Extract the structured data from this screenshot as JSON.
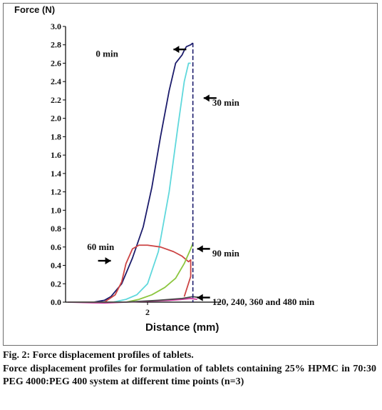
{
  "chart_data": {
    "type": "line",
    "xlabel": "Distance (mm)",
    "ylabel": "Force (N)",
    "ylim": [
      0,
      3.0
    ],
    "yticks": [
      "0.0",
      "0.2",
      "0.4",
      "0.6",
      "0.8",
      "1.0",
      "1.2",
      "1.4",
      "1.6",
      "1.8",
      "2.0",
      "2.2",
      "2.4",
      "2.6",
      "2.8",
      "3.0"
    ],
    "xlim": [
      -1.8,
      5.4
    ],
    "xticks": [
      "2"
    ],
    "grid": false,
    "series": [
      {
        "color": "#1b1b6b",
        "x": [
          -1.7,
          -0.5,
          0.0,
          0.3,
          0.8,
          1.3,
          1.8,
          2.2,
          2.6,
          3.0,
          3.3,
          3.6,
          3.7,
          3.8,
          4.0,
          4.1
        ],
        "y": [
          0.0,
          0.0,
          0.02,
          0.06,
          0.2,
          0.48,
          0.82,
          1.25,
          1.8,
          2.3,
          2.6,
          2.69,
          2.74,
          2.78,
          2.8,
          2.82
        ]
      },
      {
        "color": "#5fd8dc",
        "x": [
          -1.7,
          0.4,
          1.0,
          1.5,
          2.0,
          2.5,
          3.0,
          3.4,
          3.7,
          3.9,
          4.0
        ],
        "y": [
          0.0,
          0.0,
          0.03,
          0.08,
          0.2,
          0.55,
          1.2,
          1.9,
          2.4,
          2.6,
          2.6
        ]
      },
      {
        "color": "#cc4444",
        "x": [
          -1.7,
          0.0,
          0.5,
          0.8,
          1.0,
          1.3,
          1.6,
          2.0,
          2.6,
          3.2,
          3.6,
          3.9,
          4.0,
          4.0,
          3.7
        ],
        "y": [
          0.0,
          0.0,
          0.08,
          0.22,
          0.42,
          0.58,
          0.62,
          0.62,
          0.6,
          0.55,
          0.5,
          0.44,
          0.46,
          0.28,
          0.06
        ]
      },
      {
        "color": "#8cc63f",
        "x": [
          -1.7,
          1.0,
          1.6,
          2.2,
          2.8,
          3.3,
          3.7,
          4.0,
          4.1
        ],
        "y": [
          0.0,
          0.0,
          0.03,
          0.08,
          0.16,
          0.26,
          0.42,
          0.58,
          0.64
        ]
      },
      {
        "color": "#d13aa0",
        "x": [
          -1.7,
          0.0,
          1.0,
          2.0,
          3.0,
          3.6,
          4.0,
          4.3
        ],
        "y": [
          0.0,
          -0.01,
          0.0,
          0.01,
          0.02,
          0.03,
          0.04,
          0.03
        ]
      },
      {
        "color": "#4a4a4a",
        "x": [
          -1.7,
          1.0,
          2.5,
          3.6,
          4.1,
          4.4
        ],
        "y": [
          0.0,
          0.0,
          0.02,
          0.04,
          0.06,
          0.05
        ]
      }
    ],
    "annotations": [
      {
        "label": "0 min",
        "x": -0.4,
        "y": 2.7,
        "arrow_dir": "left",
        "arrow_to": [
          3.2,
          2.75
        ]
      },
      {
        "label": "30 min",
        "x": 5.0,
        "y": 2.17,
        "arrow_dir": "left",
        "arrow_to": [
          4.6,
          2.22
        ]
      },
      {
        "label": "60 min",
        "x": -0.8,
        "y": 0.6,
        "arrow_dir": "right",
        "arrow_to": [
          0.3,
          0.45
        ]
      },
      {
        "label": "90 min",
        "x": 5.0,
        "y": 0.53,
        "arrow_dir": "left",
        "arrow_to": [
          4.3,
          0.58
        ]
      },
      {
        "label": "120, 240, 360 and 480 min",
        "x": 5.0,
        "y": 0.0,
        "arrow_dir": "left",
        "arrow_to": [
          4.3,
          0.05
        ]
      }
    ]
  },
  "caption": {
    "title": "Fig. 2:  Force displacement profiles of tablets.",
    "text": "Force displacement profiles for formulation of tablets containing 25% HPMC in 70:30 PEG 4000:PEG 400 system at different time points (n=3)"
  }
}
